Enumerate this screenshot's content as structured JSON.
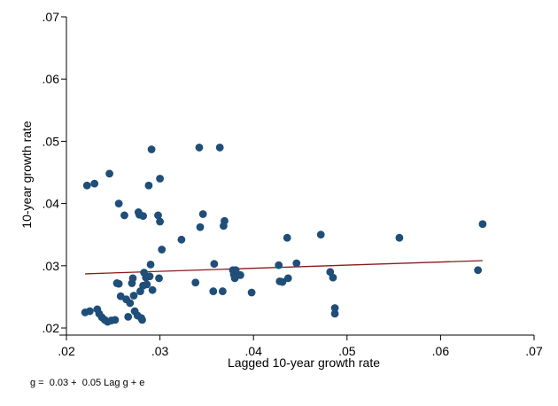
{
  "chart_data": {
    "type": "scatter",
    "xlabel": "Lagged 10-year growth rate",
    "ylabel": "10-year growth rate",
    "note": "g =  0.03 +  0.05 Lag g + e",
    "xlim": [
      0.02,
      0.07
    ],
    "ylim": [
      0.02,
      0.07
    ],
    "xticks": [
      0.02,
      0.03,
      0.04,
      0.05,
      0.06,
      0.07
    ],
    "xtick_labels": [
      ".02",
      ".03",
      ".04",
      ".05",
      ".06",
      ".07"
    ],
    "yticks": [
      0.02,
      0.03,
      0.04,
      0.05,
      0.06,
      0.07
    ],
    "ytick_labels": [
      ".02",
      ".03",
      ".04",
      ".05",
      ".06",
      ".07"
    ],
    "grid": false,
    "colors": {
      "points": "#1f4e79",
      "fit_line": "#8b1a1a",
      "axis": "#000000"
    },
    "fit_line": {
      "intercept": 0.0286,
      "slope": 0.05,
      "x_range": [
        0.022,
        0.0645
      ]
    },
    "points": [
      [
        0.022,
        0.0225
      ],
      [
        0.0225,
        0.0227
      ],
      [
        0.0222,
        0.0429
      ],
      [
        0.023,
        0.0432
      ],
      [
        0.0233,
        0.023
      ],
      [
        0.0235,
        0.0223
      ],
      [
        0.0238,
        0.0217
      ],
      [
        0.0241,
        0.0213
      ],
      [
        0.0244,
        0.021
      ],
      [
        0.0246,
        0.0448
      ],
      [
        0.0248,
        0.0212
      ],
      [
        0.0252,
        0.0213
      ],
      [
        0.0254,
        0.0272
      ],
      [
        0.0256,
        0.0271
      ],
      [
        0.0256,
        0.04
      ],
      [
        0.0258,
        0.0251
      ],
      [
        0.0262,
        0.0381
      ],
      [
        0.0264,
        0.0246
      ],
      [
        0.0266,
        0.0218
      ],
      [
        0.0268,
        0.024
      ],
      [
        0.027,
        0.0272
      ],
      [
        0.0271,
        0.028
      ],
      [
        0.0272,
        0.0252
      ],
      [
        0.0273,
        0.0227
      ],
      [
        0.0276,
        0.022
      ],
      [
        0.0277,
        0.0386
      ],
      [
        0.0278,
        0.0382
      ],
      [
        0.0279,
        0.0259
      ],
      [
        0.028,
        0.0216
      ],
      [
        0.0281,
        0.0213
      ],
      [
        0.0282,
        0.0268
      ],
      [
        0.0282,
        0.038
      ],
      [
        0.0283,
        0.0289
      ],
      [
        0.0285,
        0.0281
      ],
      [
        0.0286,
        0.027
      ],
      [
        0.0288,
        0.0429
      ],
      [
        0.0289,
        0.0283
      ],
      [
        0.029,
        0.0302
      ],
      [
        0.0291,
        0.0487
      ],
      [
        0.0292,
        0.0261
      ],
      [
        0.0298,
        0.0381
      ],
      [
        0.0299,
        0.028
      ],
      [
        0.03,
        0.0371
      ],
      [
        0.03,
        0.044
      ],
      [
        0.0302,
        0.0326
      ],
      [
        0.0323,
        0.0342
      ],
      [
        0.0338,
        0.0273
      ],
      [
        0.0342,
        0.049
      ],
      [
        0.0343,
        0.0362
      ],
      [
        0.0346,
        0.0383
      ],
      [
        0.0357,
        0.0259
      ],
      [
        0.0358,
        0.0303
      ],
      [
        0.0364,
        0.049
      ],
      [
        0.0367,
        0.0259
      ],
      [
        0.0368,
        0.0364
      ],
      [
        0.0369,
        0.0372
      ],
      [
        0.0378,
        0.0293
      ],
      [
        0.0379,
        0.0286
      ],
      [
        0.038,
        0.028
      ],
      [
        0.0381,
        0.0293
      ],
      [
        0.0386,
        0.0285
      ],
      [
        0.0398,
        0.0257
      ],
      [
        0.0427,
        0.0301
      ],
      [
        0.0428,
        0.0275
      ],
      [
        0.0431,
        0.0274
      ],
      [
        0.0436,
        0.0345
      ],
      [
        0.0437,
        0.028
      ],
      [
        0.0446,
        0.0304
      ],
      [
        0.0472,
        0.035
      ],
      [
        0.0482,
        0.029
      ],
      [
        0.0485,
        0.0281
      ],
      [
        0.0487,
        0.0232
      ],
      [
        0.0487,
        0.0223
      ],
      [
        0.0556,
        0.0345
      ],
      [
        0.064,
        0.0293
      ],
      [
        0.0645,
        0.0367
      ]
    ]
  }
}
